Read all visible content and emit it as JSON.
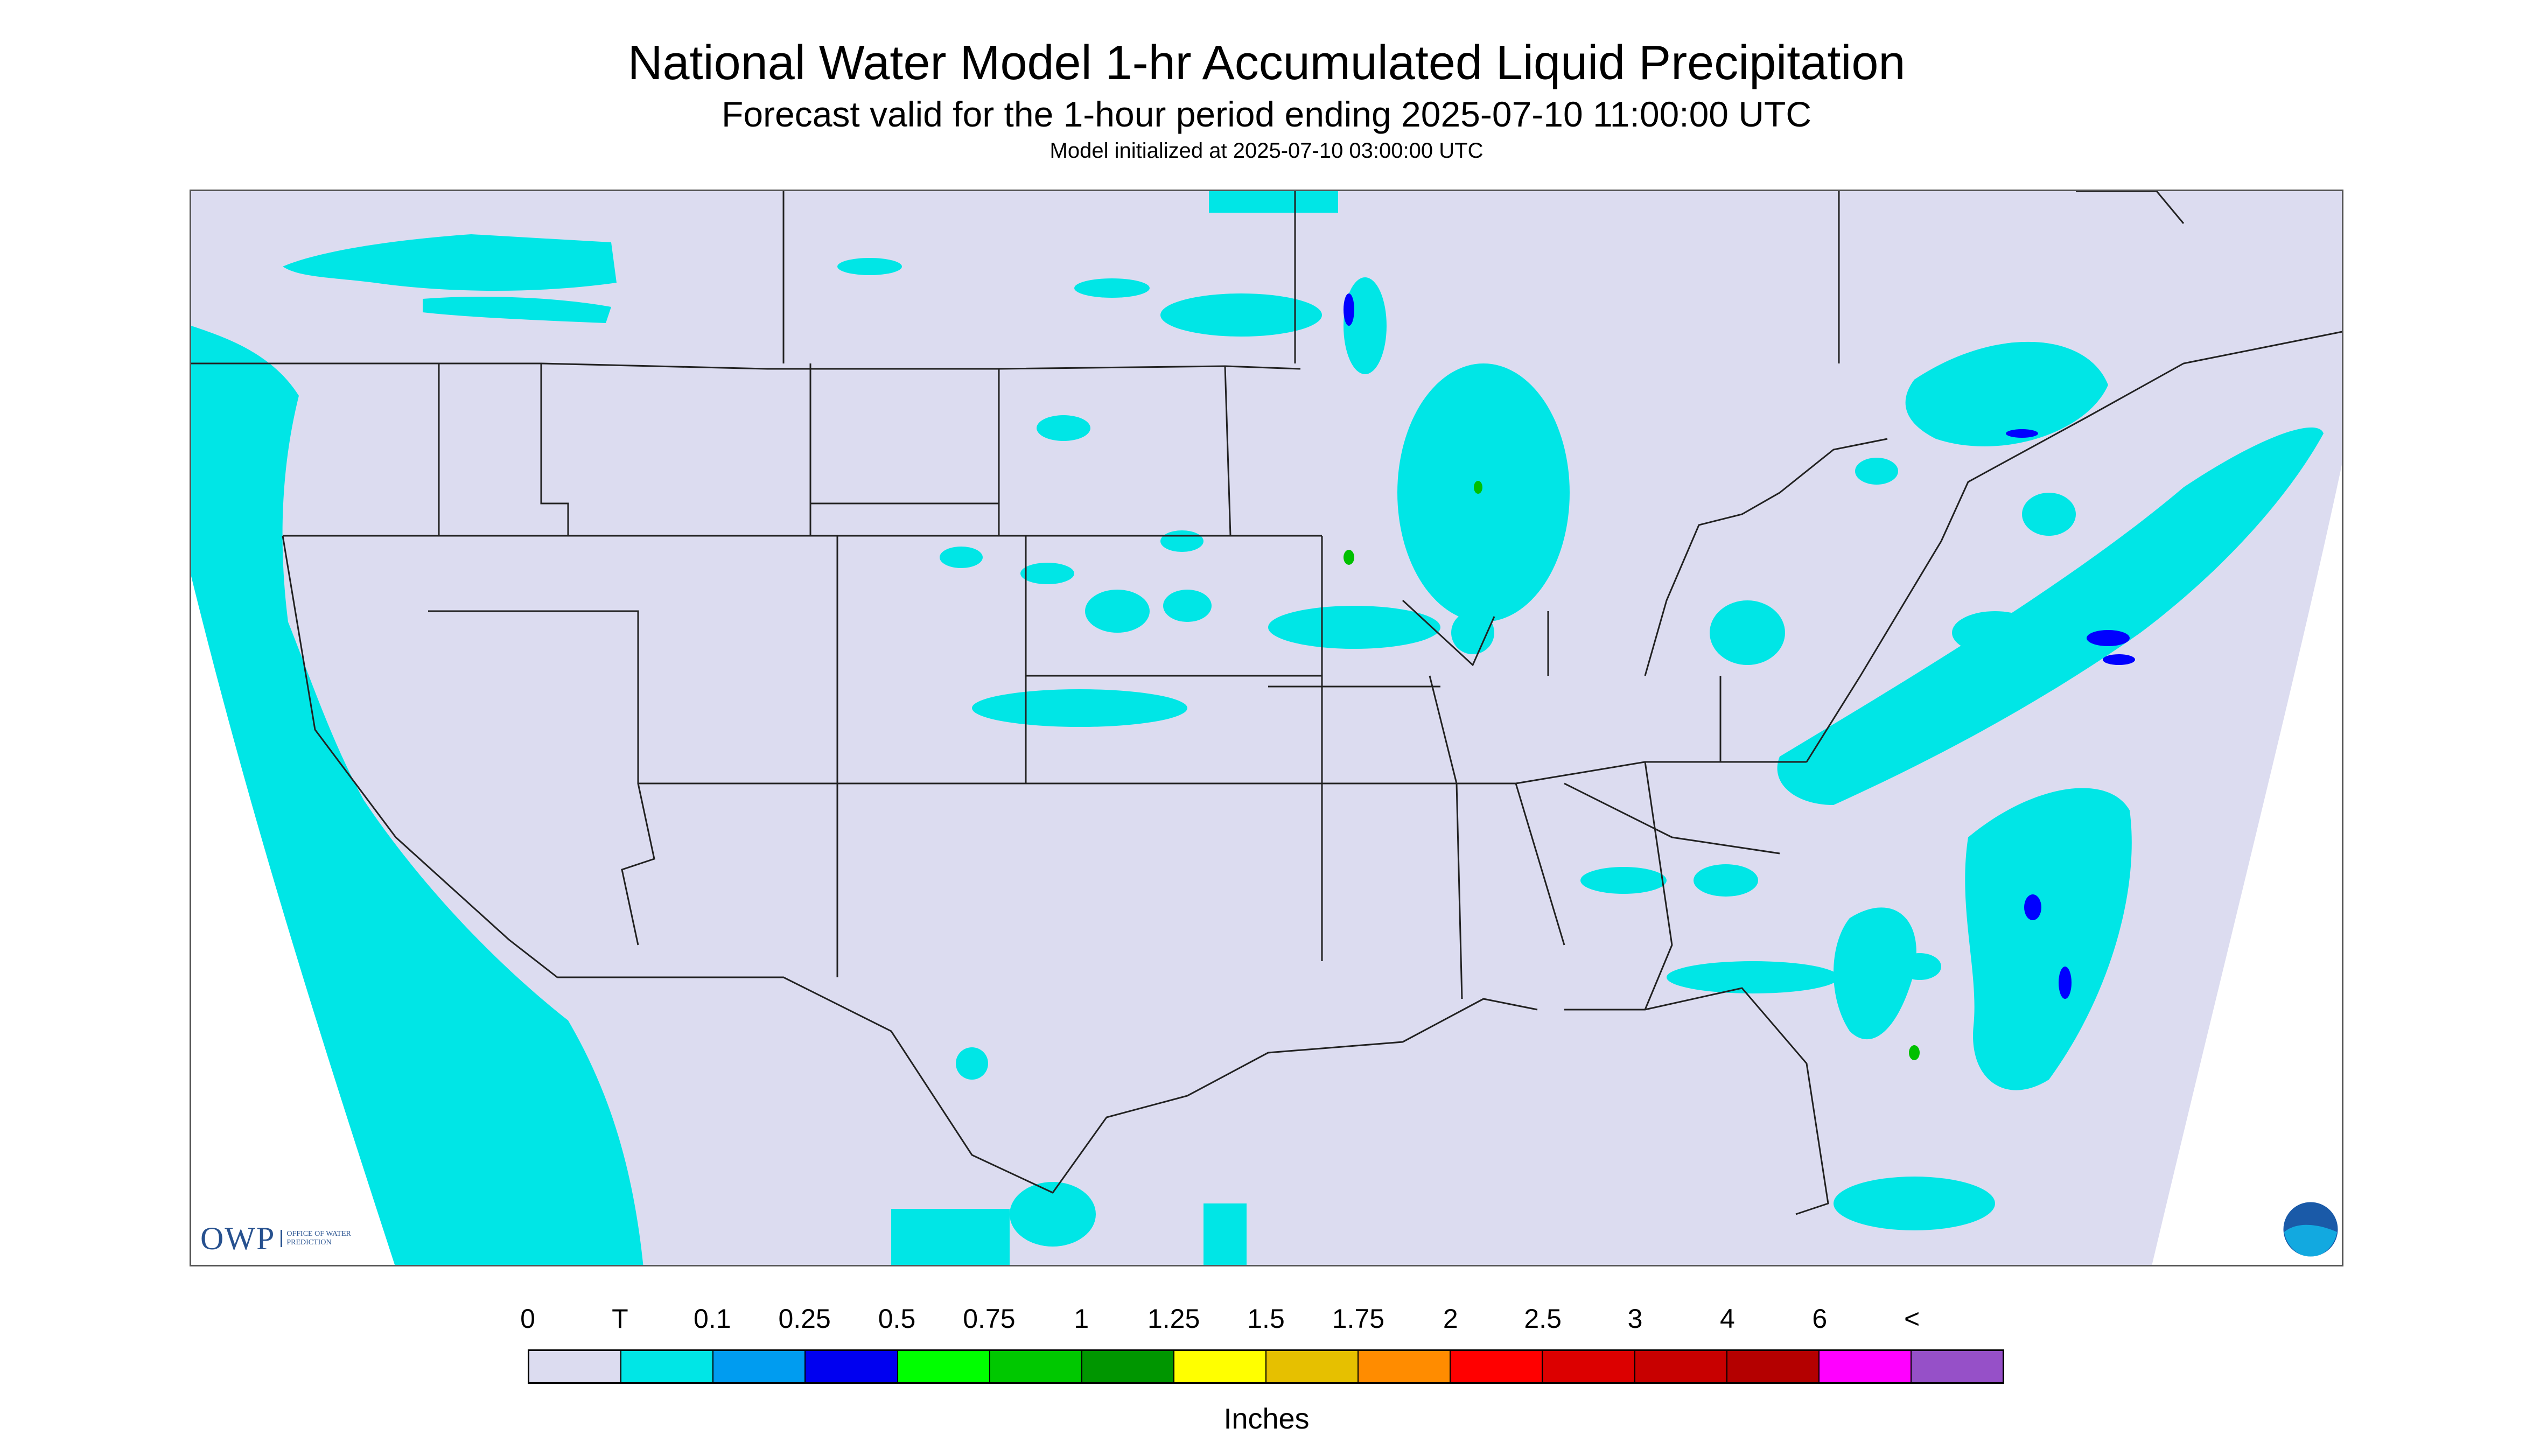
{
  "title": "National Water Model 1-hr Accumulated Liquid Precipitation",
  "subtitle": "Forecast valid for the 1-hour period ending 2025-07-10 11:00:00 UTC",
  "init_line": "Model initialized at 2025-07-10 03:00:00 UTC",
  "logos": {
    "owp": "OWP",
    "owp_sub": "OFFICE OF WATER PREDICTION",
    "noaa": "NOAA"
  },
  "colors": {
    "background_domain": "#dcdcf0",
    "outside_domain": "#ffffff",
    "trace": "#00e6e6",
    "blue": "#0000ff",
    "green": "#00c000",
    "border_line": "#222222"
  },
  "legend": {
    "units": "Inches",
    "labels": [
      "0",
      "T",
      "0.1",
      "0.25",
      "0.5",
      "0.75",
      "1",
      "1.25",
      "1.5",
      "1.75",
      "2",
      "2.5",
      "3",
      "4",
      "6",
      "<"
    ],
    "colors": [
      "#dcdcf0",
      "#00e6e6",
      "#009cf0",
      "#0000f0",
      "#00ff00",
      "#00c800",
      "#009600",
      "#ffff00",
      "#e6c000",
      "#ff8c00",
      "#ff0000",
      "#dc0000",
      "#c80000",
      "#b40000",
      "#ff00ff",
      "#9650c8"
    ]
  }
}
